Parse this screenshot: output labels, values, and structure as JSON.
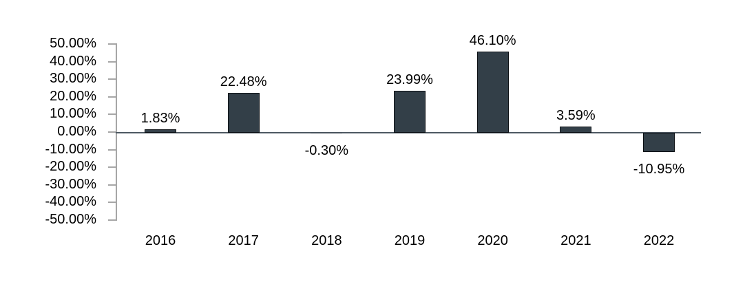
{
  "chart_data": {
    "type": "bar",
    "title": "",
    "xlabel": "",
    "ylabel": "",
    "categories": [
      "2016",
      "2017",
      "2018",
      "2019",
      "2020",
      "2021",
      "2022"
    ],
    "values": [
      1.83,
      22.48,
      -0.3,
      23.99,
      46.1,
      3.59,
      -10.95
    ],
    "value_labels": [
      "1.83%",
      "22.48%",
      "-0.30%",
      "23.99%",
      "46.10%",
      "3.59%",
      "-10.95%"
    ],
    "y_ticks": [
      50,
      40,
      30,
      20,
      10,
      0,
      -10,
      -20,
      -30,
      -40,
      -50
    ],
    "y_tick_labels": [
      "50.00%",
      "40.00%",
      "30.00%",
      "20.00%",
      "10.00%",
      "0.00%",
      "-10.00%",
      "-20.00%",
      "-30.00%",
      "-40.00%",
      "-50.00%"
    ],
    "ylim": [
      -50,
      50
    ],
    "grid": false,
    "legend": "none",
    "colors": {
      "bar_fill": "#333F48",
      "bar_border": "#0B0F13",
      "axis_line": "#A6A6A6",
      "zero_line": "#4D5862",
      "label_text": "#000000"
    }
  }
}
